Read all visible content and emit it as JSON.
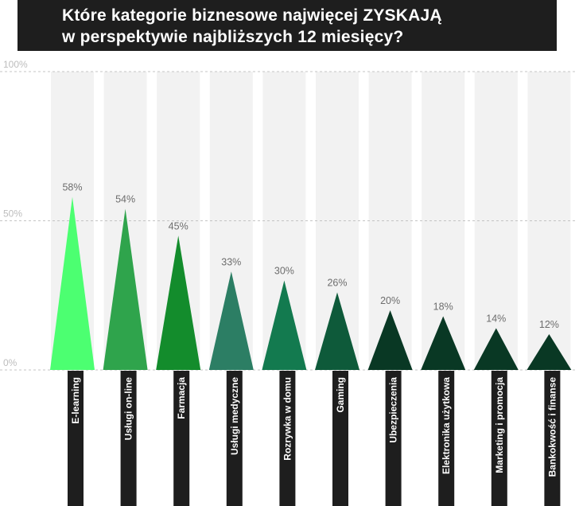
{
  "title_lines": [
    "Które kategorie biznesowe najwięcej ZYSKAJĄ",
    "w perspektywie najbliższych 12 miesięcy?"
  ],
  "chart_data": {
    "type": "bar",
    "title": "Które kategorie biznesowe najwięcej ZYSKAJĄ w perspektywie najbliższych 12 miesięcy?",
    "categories": [
      "E-learning",
      "Usługi on-line",
      "Farmacja",
      "Usługi medyczne",
      "Rozrywka w domu",
      "Gaming",
      "Ubezpieczenia",
      "Elektronika użytkowa",
      "Marketing i promocja",
      "Bankokwość i finanse"
    ],
    "values": [
      58,
      54,
      45,
      33,
      30,
      26,
      20,
      18,
      14,
      12
    ],
    "value_labels": [
      "58%",
      "54%",
      "45%",
      "33%",
      "30%",
      "26%",
      "20%",
      "18%",
      "14%",
      "12%"
    ],
    "ylim": [
      0,
      100
    ],
    "yticks": [
      0,
      50,
      100
    ],
    "ytick_labels": [
      "0%",
      "50%",
      "100%"
    ],
    "grid": true,
    "bar_shape": "triangle",
    "colors": [
      "#4cff71",
      "#2fa44c",
      "#138c2c",
      "#2c7e64",
      "#137a4f",
      "#0e5a3a",
      "#093824",
      "#093824",
      "#093824",
      "#093824"
    ],
    "background_column_color": "#f2f2f2",
    "label_box_color": "#1e1e1e"
  }
}
